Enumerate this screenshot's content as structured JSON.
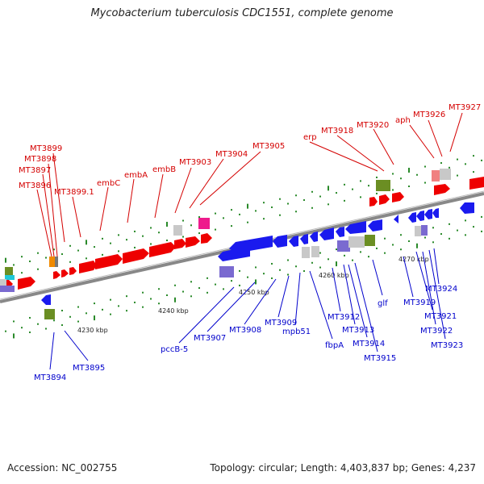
{
  "title": "Mycobacterium tuberculosis CDC1551, complete genome",
  "accession": "Accession: NC_002755",
  "summary": "Topology: circular; Length: 4,403,837 bp; Genes: 4,237",
  "colors": {
    "forward": "#ee0000",
    "reverse": "#1a1aee",
    "backbone": "#888888",
    "other_gray": "#c8c8c8",
    "olive": "#6b8e23",
    "magenta": "#ee1a8c",
    "orange": "#f08a00",
    "cyan": "#20c8d8",
    "purple": "#7a6ad0",
    "pink": "#f08080",
    "forward_label": "#d40000",
    "reverse_label": "#0000cc",
    "tick_mark": "#2a8a2a"
  },
  "scale_labels": [
    "4230 kbp",
    "4240 kbp",
    "4250 kbp",
    "4260 kbp",
    "4270 kbp"
  ],
  "forward_labels": [
    "MT3896",
    "MT3897",
    "MT3898",
    "MT3899",
    "MT3899.1",
    "embC",
    "embA",
    "embB",
    "MT3903",
    "MT3904",
    "MT3905",
    "erp",
    "MT3918",
    "MT3920",
    "aph",
    "MT3926",
    "MT3927"
  ],
  "reverse_labels": [
    "MT3894",
    "MT3895",
    "pccB-5",
    "MT3907",
    "MT3908",
    "MT3909",
    "mpb51",
    "fbpA",
    "MT3912",
    "MT3913",
    "MT3914",
    "MT3915",
    "glf",
    "MT3919",
    "MT3921",
    "MT3922",
    "MT3923",
    "MT3924"
  ]
}
